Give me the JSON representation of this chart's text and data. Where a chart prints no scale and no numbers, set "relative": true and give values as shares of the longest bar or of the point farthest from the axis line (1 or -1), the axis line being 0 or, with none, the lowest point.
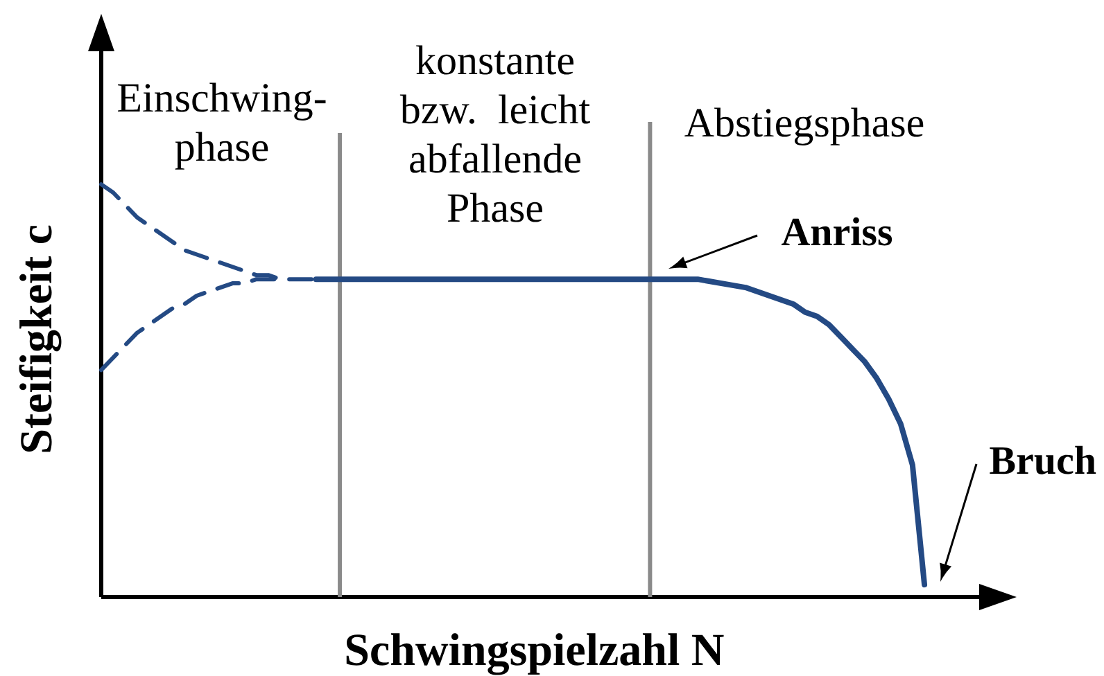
{
  "chart_data": {
    "type": "line",
    "relative": true,
    "xlabel": "Schwingspielzahl N",
    "ylabel": "Steifigkeit c",
    "categories": [
      null,
      null,
      null,
      null,
      null,
      null,
      null,
      null,
      null,
      null,
      null,
      null,
      null,
      null,
      null,
      null,
      null,
      null,
      null,
      null,
      null,
      null,
      null,
      null,
      null,
      null,
      null,
      null,
      null,
      null,
      null,
      null,
      null,
      null,
      null,
      null,
      null,
      null,
      null,
      null,
      null,
      null,
      null,
      null,
      null,
      null,
      null,
      null,
      null,
      null,
      null,
      null,
      null,
      null,
      null,
      null,
      null,
      null,
      null,
      null,
      null,
      null,
      null,
      null,
      null,
      null,
      null,
      null,
      null,
      null
    ],
    "series": [
      {
        "color": "#244a84",
        "line_style": "solid",
        "values": [
          null,
          null,
          null,
          null,
          null,
          null,
          null,
          null,
          null,
          null,
          null,
          null,
          null,
          null,
          null,
          null,
          null,
          null,
          0.77,
          0.77,
          0.77,
          0.77,
          0.77,
          0.77,
          0.77,
          0.77,
          0.77,
          0.77,
          0.77,
          0.77,
          0.77,
          0.77,
          0.77,
          0.77,
          0.77,
          0.77,
          0.77,
          0.77,
          0.77,
          0.77,
          0.77,
          0.77,
          0.77,
          0.77,
          0.77,
          0.77,
          0.77,
          0.77,
          0.77,
          0.77,
          0.77,
          0.765,
          0.76,
          0.755,
          0.75,
          0.74,
          0.73,
          0.72,
          0.71,
          0.69,
          0.68,
          0.66,
          0.63,
          0.6,
          0.57,
          0.53,
          0.48,
          0.42,
          0.32,
          0.03
        ]
      },
      {
        "color": "#244a84",
        "line_style": "dashed",
        "values": [
          1,
          0.98,
          0.95,
          0.92,
          0.9,
          0.88,
          0.86,
          0.84,
          0.83,
          0.82,
          0.81,
          0.8,
          0.79,
          0.78,
          0.78,
          0.77,
          0.77,
          0.77,
          0.77,
          null,
          null,
          null,
          null,
          null,
          null,
          null,
          null,
          null,
          null,
          null,
          null,
          null,
          null,
          null,
          null,
          null,
          null,
          null,
          null,
          null,
          null,
          null,
          null,
          null,
          null,
          null,
          null,
          null,
          null,
          null,
          null,
          null,
          null,
          null,
          null,
          null,
          null,
          null,
          null,
          null,
          null,
          null,
          null,
          null,
          null,
          null,
          null,
          null,
          null,
          null
        ]
      },
      {
        "color": "#244a84",
        "line_style": "dashed",
        "values": [
          0.55,
          0.58,
          0.61,
          0.64,
          0.66,
          0.68,
          0.7,
          0.71,
          0.73,
          0.74,
          0.75,
          0.76,
          0.76,
          0.77,
          0.77,
          0.77,
          null,
          null,
          null,
          null,
          null,
          null,
          null,
          null,
          null,
          null,
          null,
          null,
          null,
          null,
          null,
          null,
          null,
          null,
          null,
          null,
          null,
          null,
          null,
          null,
          null,
          null,
          null,
          null,
          null,
          null,
          null,
          null,
          null,
          null,
          null,
          null,
          null,
          null,
          null,
          null,
          null,
          null,
          null,
          null,
          null,
          null,
          null,
          null,
          null,
          null,
          null,
          null,
          null,
          null
        ]
      }
    ],
    "annotations": [
      "Einschwing-phase",
      "konstante bzw. leicht abfallende Phase",
      "Abstiegsphase",
      "Anriss",
      "Bruch"
    ]
  }
}
